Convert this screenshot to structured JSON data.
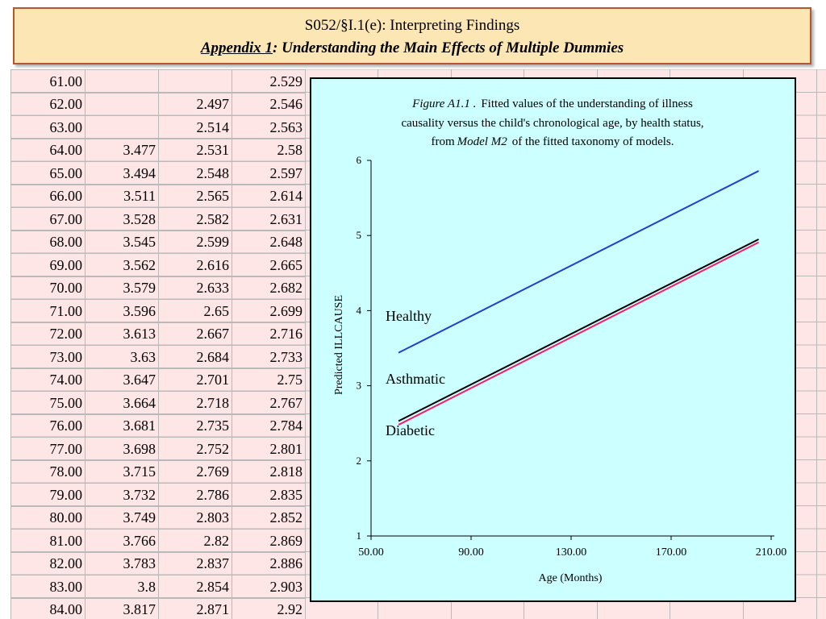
{
  "banner": {
    "line1": "S052/§I.1(e): Interpreting Findings",
    "line2_underlined": "Appendix 1",
    "line2_rest": ": Understanding the Main Effects of Multiple Dummies"
  },
  "table": {
    "rows": [
      [
        "61.00",
        "",
        "",
        "2.529"
      ],
      [
        "62.00",
        "",
        "2.497",
        "2.546"
      ],
      [
        "63.00",
        "",
        "2.514",
        "2.563"
      ],
      [
        "64.00",
        "3.477",
        "2.531",
        "2.58"
      ],
      [
        "65.00",
        "3.494",
        "2.548",
        "2.597"
      ],
      [
        "66.00",
        "3.511",
        "2.565",
        "2.614"
      ],
      [
        "67.00",
        "3.528",
        "2.582",
        "2.631"
      ],
      [
        "68.00",
        "3.545",
        "2.599",
        "2.648"
      ],
      [
        "69.00",
        "3.562",
        "2.616",
        "2.665"
      ],
      [
        "70.00",
        "3.579",
        "2.633",
        "2.682"
      ],
      [
        "71.00",
        "3.596",
        "2.65",
        "2.699"
      ],
      [
        "72.00",
        "3.613",
        "2.667",
        "2.716"
      ],
      [
        "73.00",
        "3.63",
        "2.684",
        "2.733"
      ],
      [
        "74.00",
        "3.647",
        "2.701",
        "2.75"
      ],
      [
        "75.00",
        "3.664",
        "2.718",
        "2.767"
      ],
      [
        "76.00",
        "3.681",
        "2.735",
        "2.784"
      ],
      [
        "77.00",
        "3.698",
        "2.752",
        "2.801"
      ],
      [
        "78.00",
        "3.715",
        "2.769",
        "2.818"
      ],
      [
        "79.00",
        "3.732",
        "2.786",
        "2.835"
      ],
      [
        "80.00",
        "3.749",
        "2.803",
        "2.852"
      ],
      [
        "81.00",
        "3.766",
        "2.82",
        "2.869"
      ],
      [
        "82.00",
        "3.783",
        "2.837",
        "2.886"
      ],
      [
        "83.00",
        "3.8",
        "2.854",
        "2.903"
      ],
      [
        "84.00",
        "3.817",
        "2.871",
        "2.92"
      ]
    ]
  },
  "colors": {
    "banner_bg": "#fbe6b4",
    "banner_border": "#b5562b",
    "sheet_bg": "#ffe6e6",
    "chart_bg": "#ccffff",
    "healthy": "#1f3fd0",
    "asthmatic": "#000000",
    "diabetic": "#ff1a66"
  },
  "chart_data": {
    "type": "line",
    "caption": {
      "line1_italic": "Figure A1.1 .",
      "line1_rest": "Fitted values of the understanding of illness",
      "line2": "causality versus the child's chronological age, by health status,",
      "line3_start": "from",
      "line3_italic": "Model M2",
      "line3_rest": "of the fitted taxonomy of models."
    },
    "xlabel": "Age (Months)",
    "ylabel": "Predicted ILLCAUSE",
    "xlim": [
      50,
      210
    ],
    "ylim": [
      1,
      6
    ],
    "x_ticks": [
      "50.00",
      "90.00",
      "130.00",
      "170.00",
      "210.00"
    ],
    "x_tick_values": [
      50,
      90,
      130,
      170,
      210
    ],
    "y_ticks": [
      "1",
      "2",
      "3",
      "4",
      "5",
      "6"
    ],
    "y_tick_values": [
      1,
      2,
      3,
      4,
      5,
      6
    ],
    "grid": false,
    "series": [
      {
        "name": "Healthy",
        "x": [
          61,
          205
        ],
        "y": [
          3.44,
          5.86
        ],
        "color": "#1f3fd0"
      },
      {
        "name": "Asthmatic",
        "x": [
          61,
          205
        ],
        "y": [
          2.53,
          4.95
        ],
        "color": "#000000"
      },
      {
        "name": "Diabetic",
        "x": [
          61,
          205
        ],
        "y": [
          2.48,
          4.91
        ],
        "color": "#ff1a66"
      }
    ]
  }
}
